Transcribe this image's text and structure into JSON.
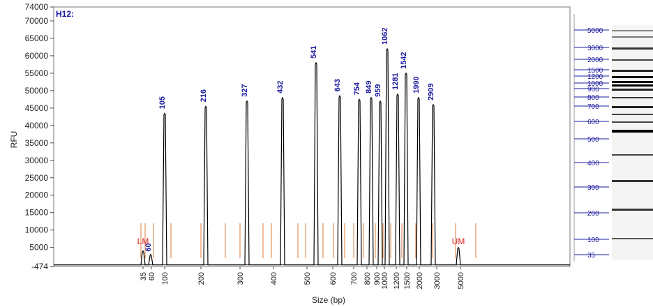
{
  "chart_data": {
    "type": "line",
    "well_label": "H12:",
    "ylabel": "RFU",
    "xlabel": "Size (bp)",
    "ylim": [
      -474,
      74000
    ],
    "y_ticks": [
      74000,
      70000,
      65000,
      60000,
      55000,
      50000,
      45000,
      40000,
      35000,
      30000,
      25000,
      20000,
      15000,
      10000,
      5000,
      -474
    ],
    "x_tick_labels": [
      "35",
      "60",
      "100",
      "200",
      "300",
      "400",
      "500",
      "600",
      "700",
      "800",
      "900",
      "1000",
      "1200",
      "1500",
      "2000",
      "3000",
      "5000"
    ],
    "markers": [
      {
        "label": "LM",
        "size": 35
      },
      {
        "label": "UM",
        "size": 5000
      }
    ],
    "peaks": [
      {
        "size": "60",
        "rfu": 3000
      },
      {
        "size": "105",
        "rfu": 43500
      },
      {
        "size": "216",
        "rfu": 45500
      },
      {
        "size": "327",
        "rfu": 47000
      },
      {
        "size": "432",
        "rfu": 48000
      },
      {
        "size": "541",
        "rfu": 58000
      },
      {
        "size": "643",
        "rfu": 48500
      },
      {
        "size": "754",
        "rfu": 47500
      },
      {
        "size": "849",
        "rfu": 48000
      },
      {
        "size": "959",
        "rfu": 47000
      },
      {
        "size": "1062",
        "rfu": 62000
      },
      {
        "size": "1281",
        "rfu": 49000
      },
      {
        "size": "1542",
        "rfu": 55000
      },
      {
        "size": "1990",
        "rfu": 48000
      },
      {
        "size": "2909",
        "rfu": 46000
      }
    ],
    "ladder_scale": [
      "5000",
      "3000",
      "2000",
      "1500",
      "1200",
      "1000",
      "900",
      "800",
      "700",
      "600",
      "500",
      "400",
      "300",
      "200",
      "100",
      "35"
    ],
    "colors": {
      "trace": "#000000",
      "peak_label": "#1a1aa0",
      "marker_label": "#e02020",
      "size_line": "#e07b39",
      "ladder_scale": "#1a1aa0"
    }
  }
}
